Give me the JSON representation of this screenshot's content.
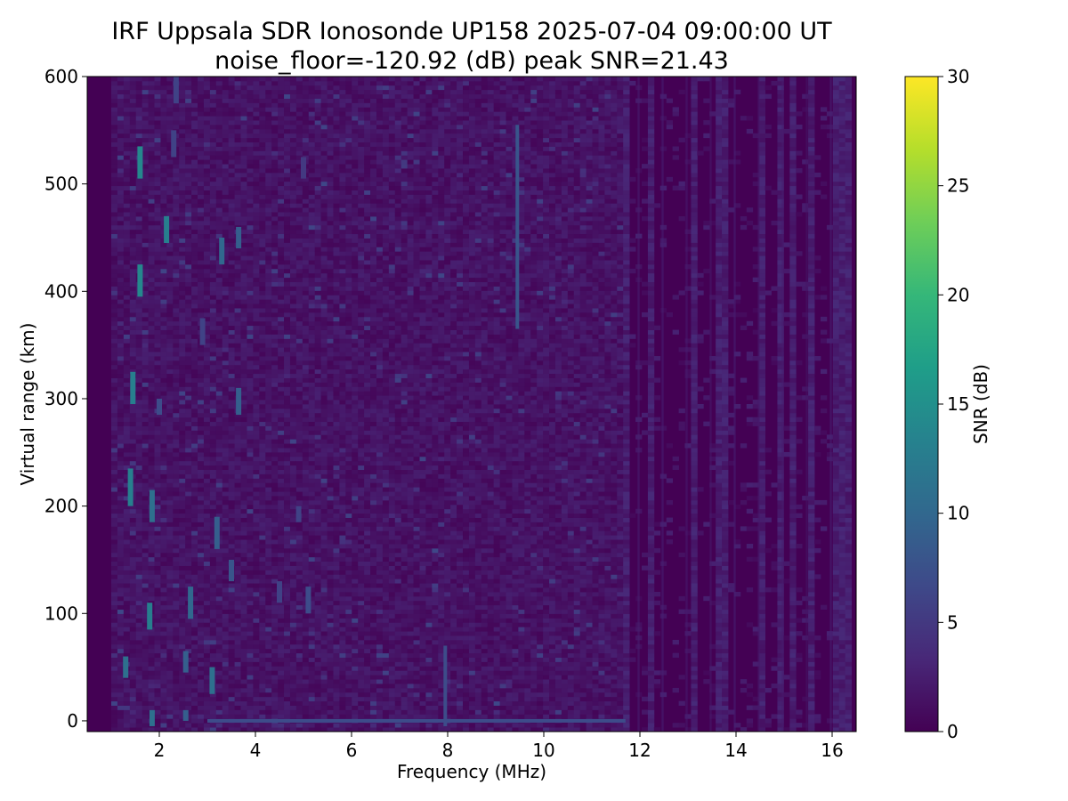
{
  "chart_data": {
    "type": "heatmap",
    "title": "IRF Uppsala SDR Ionosonde UP158 2025-07-04 09:00:00  UT",
    "subtitle": "noise_floor=-120.92 (dB) peak SNR=21.43",
    "xlabel": "Frequency (MHz)",
    "ylabel": "Virtual range (km)",
    "colorbar_label": "SNR (dB)",
    "colormap": "viridis",
    "colormap_stops": [
      "#440154",
      "#482878",
      "#3e4989",
      "#31688e",
      "#26828e",
      "#1f9e89",
      "#35b779",
      "#6ece58",
      "#b5de2b",
      "#fde725"
    ],
    "xlim": [
      0.5,
      16.5
    ],
    "ylim": [
      -10,
      600
    ],
    "clim": [
      0,
      30
    ],
    "x_ticks": [
      2,
      4,
      6,
      8,
      10,
      12,
      14,
      16
    ],
    "y_ticks": [
      0,
      100,
      200,
      300,
      400,
      500,
      600
    ],
    "colorbar_ticks": [
      0,
      5,
      10,
      15,
      20,
      25,
      30
    ],
    "frequency_range": [
      1.0,
      16.4
    ],
    "background_snr": 1.5,
    "noisy_band": [
      1.0,
      11.7
    ],
    "echoes": [
      {
        "f": 1.6,
        "r0": 505,
        "r1": 535,
        "snr": 14
      },
      {
        "f": 2.15,
        "r0": 445,
        "r1": 470,
        "snr": 13
      },
      {
        "f": 1.6,
        "r0": 395,
        "r1": 425,
        "snr": 14
      },
      {
        "f": 3.3,
        "r0": 425,
        "r1": 450,
        "snr": 10
      },
      {
        "f": 3.65,
        "r0": 440,
        "r1": 460,
        "snr": 9
      },
      {
        "f": 1.45,
        "r0": 295,
        "r1": 325,
        "snr": 13
      },
      {
        "f": 3.65,
        "r0": 285,
        "r1": 310,
        "snr": 9
      },
      {
        "f": 1.4,
        "r0": 200,
        "r1": 235,
        "snr": 13
      },
      {
        "f": 1.85,
        "r0": 185,
        "r1": 215,
        "snr": 11
      },
      {
        "f": 1.8,
        "r0": 85,
        "r1": 110,
        "snr": 13
      },
      {
        "f": 2.65,
        "r0": 95,
        "r1": 125,
        "snr": 10
      },
      {
        "f": 1.3,
        "r0": 40,
        "r1": 60,
        "snr": 11
      },
      {
        "f": 3.1,
        "r0": 25,
        "r1": 50,
        "snr": 11
      },
      {
        "f": 3.2,
        "r0": 160,
        "r1": 190,
        "snr": 9
      },
      {
        "f": 3.5,
        "r0": 130,
        "r1": 150,
        "snr": 8
      },
      {
        "f": 2.9,
        "r0": 350,
        "r1": 375,
        "snr": 6
      },
      {
        "f": 2.0,
        "r0": 285,
        "r1": 300,
        "snr": 7
      },
      {
        "f": 2.3,
        "r0": 525,
        "r1": 550,
        "snr": 6
      },
      {
        "f": 2.35,
        "r0": 575,
        "r1": 600,
        "snr": 6
      },
      {
        "f": 4.5,
        "r0": 110,
        "r1": 130,
        "snr": 6
      },
      {
        "f": 5.1,
        "r0": 100,
        "r1": 125,
        "snr": 7
      },
      {
        "f": 4.9,
        "r0": 185,
        "r1": 200,
        "snr": 6
      },
      {
        "f": 5.0,
        "r0": 505,
        "r1": 525,
        "snr": 5
      },
      {
        "f": 2.55,
        "r0": 45,
        "r1": 65,
        "snr": 9
      },
      {
        "f": 2.55,
        "r0": 0,
        "r1": 10,
        "snr": 9
      },
      {
        "f": 1.85,
        "r0": -5,
        "r1": 10,
        "snr": 11
      }
    ],
    "traces": [
      {
        "f": 9.45,
        "r0": 365,
        "r1": 555,
        "snr": 8
      },
      {
        "f": 7.95,
        "r0": -5,
        "r1": 70,
        "snr": 7
      }
    ],
    "ground_echo": {
      "r": 0,
      "f0": 3.0,
      "f1": 11.7,
      "snr": 7
    }
  }
}
